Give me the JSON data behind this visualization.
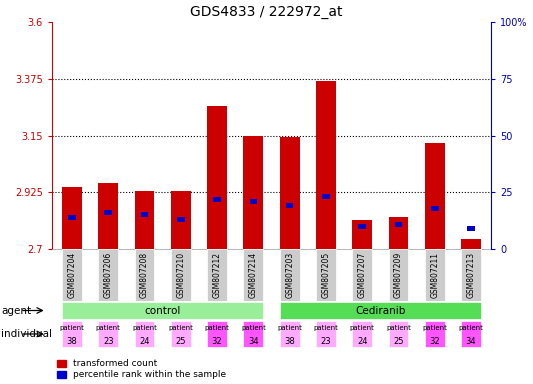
{
  "title": "GDS4833 / 222972_at",
  "samples": [
    "GSM807204",
    "GSM807206",
    "GSM807208",
    "GSM807210",
    "GSM807212",
    "GSM807214",
    "GSM807203",
    "GSM807205",
    "GSM807207",
    "GSM807209",
    "GSM807211",
    "GSM807213"
  ],
  "red_values": [
    2.945,
    2.96,
    2.93,
    2.93,
    3.265,
    3.15,
    3.145,
    3.365,
    2.815,
    2.825,
    3.12,
    2.74
  ],
  "blue_values": [
    14,
    16,
    15,
    13,
    22,
    21,
    19,
    23,
    10,
    11,
    18,
    9
  ],
  "ymin": 2.7,
  "ymax": 3.6,
  "yticks": [
    2.7,
    2.925,
    3.15,
    3.375,
    3.6
  ],
  "ytick_labels": [
    "2.7",
    "2.925",
    "3.15",
    "3.375",
    "3.6"
  ],
  "right_yticks": [
    0,
    25,
    50,
    75,
    100
  ],
  "right_ytick_labels": [
    "0",
    "25",
    "50",
    "75",
    "100%"
  ],
  "dotted_lines": [
    2.925,
    3.15,
    3.375
  ],
  "patient_nums": [
    38,
    23,
    24,
    25,
    32,
    34,
    38,
    23,
    24,
    25,
    32,
    34
  ],
  "individual_colors": [
    "#FFAAFF",
    "#FFAAFF",
    "#FFAAFF",
    "#FFAAFF",
    "#FF55FF",
    "#FF55FF",
    "#FFAAFF",
    "#FFAAFF",
    "#FFAAFF",
    "#FFAAFF",
    "#FF55FF",
    "#FF55FF"
  ],
  "bar_color_red": "#CC0000",
  "bar_color_blue": "#0000CC",
  "bar_width": 0.55,
  "title_fontsize": 10,
  "tick_fontsize": 7,
  "left_axis_color": "#CC0000",
  "right_axis_color": "#0000BB",
  "agent_green_light": "#99EE99",
  "agent_green_dark": "#55DD55",
  "sample_bg": "#CCCCCC"
}
